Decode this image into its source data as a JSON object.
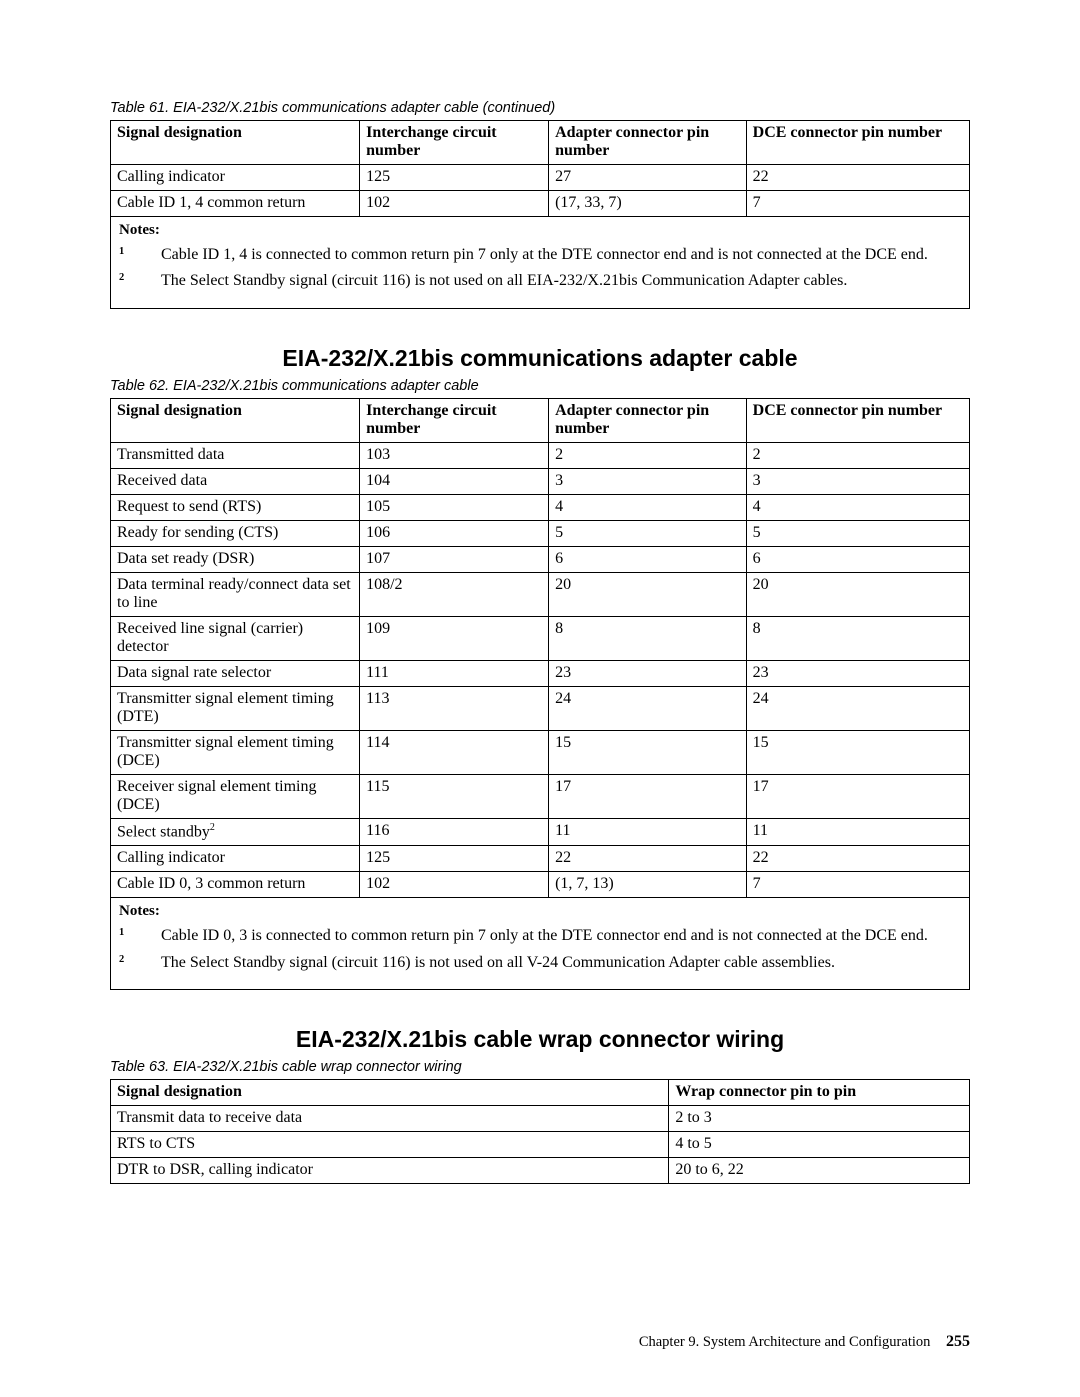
{
  "table61": {
    "caption": "Table 61. EIA-232/X.21bis communications adapter cable  (continued)",
    "headers": [
      "Signal designation",
      "Interchange circuit number",
      "Adapter connector pin number",
      "DCE connector pin number"
    ],
    "rows": [
      [
        "Calling indicator",
        "125",
        "27",
        "22"
      ],
      [
        "Cable ID 1, 4 common return",
        "102",
        "(17, 33, 7)",
        "7"
      ]
    ],
    "notes_label": "Notes:",
    "notes": [
      "Cable ID 1, 4 is connected to common return pin 7 only at the DTE connector end and is not connected at the DCE end.",
      "The Select Standby signal (circuit 116) is not used on all EIA-232/X.21bis Communication Adapter cables."
    ]
  },
  "section62_title": "EIA-232/X.21bis communications adapter cable",
  "table62": {
    "caption": "Table 62. EIA-232/X.21bis communications adapter cable",
    "headers": [
      "Signal designation",
      "Interchange circuit number",
      "Adapter connector pin number",
      "DCE connector pin number"
    ],
    "rows": [
      [
        "Transmitted data",
        "103",
        "2",
        "2"
      ],
      [
        "Received data",
        "104",
        "3",
        "3"
      ],
      [
        "Request to send (RTS)",
        "105",
        "4",
        "4"
      ],
      [
        "Ready for sending (CTS)",
        "106",
        "5",
        "5"
      ],
      [
        "Data set ready (DSR)",
        "107",
        "6",
        "6"
      ],
      [
        "Data terminal ready/connect data set to line",
        "108/2",
        "20",
        "20"
      ],
      [
        "Received line signal (carrier) detector",
        "109",
        "8",
        "8"
      ],
      [
        "Data signal rate selector",
        "111",
        "23",
        "23"
      ],
      [
        "Transmitter signal element timing (DTE)",
        "113",
        "24",
        "24"
      ],
      [
        "Transmitter signal element timing (DCE)",
        "114",
        "15",
        "15"
      ],
      [
        "Receiver signal element timing (DCE)",
        "115",
        "17",
        "17"
      ],
      [
        "Select standby",
        "116",
        "11",
        "11"
      ],
      [
        "Calling indicator",
        "125",
        "22",
        "22"
      ],
      [
        "Cable ID 0, 3 common return",
        "102",
        "(1, 7, 13)",
        "7"
      ]
    ],
    "sup_row_index": 11,
    "sup_text": "2",
    "notes_label": "Notes:",
    "notes": [
      "Cable ID 0, 3 is connected to common return pin 7 only at the DTE connector end and is not connected at the DCE end.",
      "The Select Standby signal (circuit 116) is not used on all V-24 Communication Adapter cable assemblies."
    ]
  },
  "section63_title": "EIA-232/X.21bis cable wrap connector wiring",
  "table63": {
    "caption": "Table 63. EIA-232/X.21bis cable wrap connector wiring",
    "headers": [
      "Signal designation",
      "Wrap connector pin to pin"
    ],
    "rows": [
      [
        "Transmit data to receive data",
        "2 to 3"
      ],
      [
        "RTS to CTS",
        "4 to 5"
      ],
      [
        "DTR to DSR, calling indicator",
        "20 to 6, 22"
      ]
    ]
  },
  "footer": {
    "chapter": "Chapter 9. System Architecture and Configuration",
    "page": "255"
  }
}
